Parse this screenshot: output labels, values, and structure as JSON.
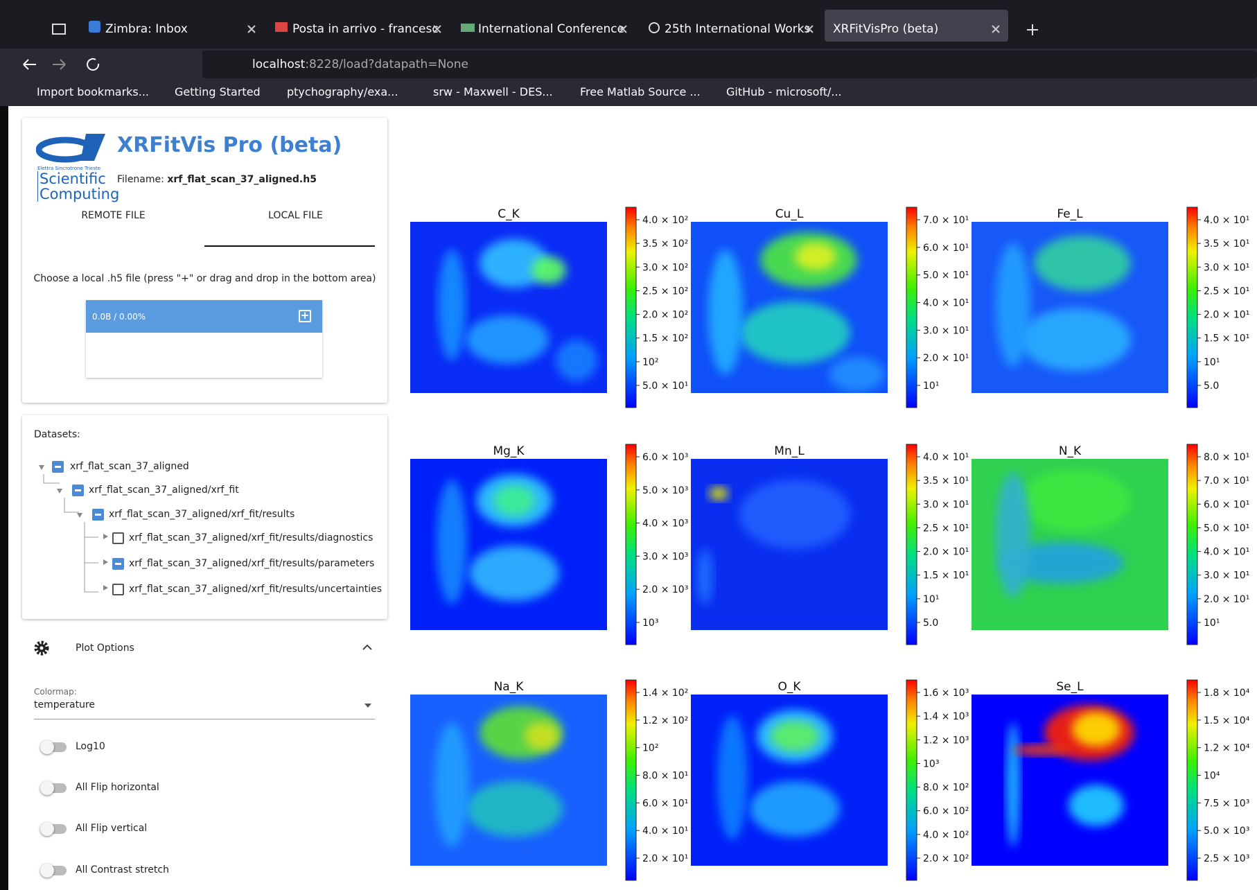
{
  "browser": {
    "tabs": [
      "Zimbra: Inbox",
      "Posta in arrivo - francesc",
      "International Conference",
      "25th International Works",
      "XRFitVisPro (beta)"
    ],
    "url_host": "localhost",
    "url_rest": ":8228/load?datapath=None",
    "bookmarks": [
      "Import bookmarks...",
      "Getting Started",
      "ptychography/exa...",
      "srw - Maxwell - DES...",
      "Free Matlab Source ...",
      "GitHub - microsoft/..."
    ]
  },
  "app": {
    "title": "XRFitVis Pro (beta)",
    "logo_small": "Elettra Sincrotrone Trieste",
    "logo_line1": "Scientific",
    "logo_line2": "Computing",
    "filename_label": "Filename:",
    "filename": "xrf_flat_scan_37_aligned.h5",
    "tabs": [
      "REMOTE FILE",
      "LOCAL FILE"
    ],
    "hint": "Choose a local .h5 file (press \"+\" or drag and drop in the bottom area)",
    "upload_status": "0.0B / 0.00%"
  },
  "datasets": {
    "label": "Datasets:",
    "items": [
      "xrf_flat_scan_37_aligned",
      "xrf_flat_scan_37_aligned/xrf_fit",
      "xrf_flat_scan_37_aligned/xrf_fit/results",
      "xrf_flat_scan_37_aligned/xrf_fit/results/diagnostics",
      "xrf_flat_scan_37_aligned/xrf_fit/results/parameters",
      "xrf_flat_scan_37_aligned/xrf_fit/results/uncertainties"
    ]
  },
  "plot_options": {
    "title": "Plot Options",
    "colormap_label": "Colormap:",
    "colormap": "temperature",
    "toggles": [
      "Log10",
      "All Flip horizontal",
      "All Flip vertical",
      "All Contrast stretch"
    ]
  },
  "plots": [
    {
      "title": "C_K",
      "ticks": [
        "4.0 × 10²",
        "3.5 × 10²",
        "3.0 × 10²",
        "2.5 × 10²",
        "2.0 × 10²",
        "1.5 × 10²",
        "10²",
        "5.0 × 10¹"
      ]
    },
    {
      "title": "Cu_L",
      "ticks": [
        "7.0 × 10¹",
        "6.0 × 10¹",
        "5.0 × 10¹",
        "4.0 × 10¹",
        "3.0 × 10¹",
        "2.0 × 10¹",
        "10¹"
      ]
    },
    {
      "title": "Fe_L",
      "ticks": [
        "4.0 × 10¹",
        "3.5 × 10¹",
        "3.0 × 10¹",
        "2.5 × 10¹",
        "2.0 × 10¹",
        "1.5 × 10¹",
        "10¹",
        "5.0"
      ]
    },
    {
      "title": "Mg_K",
      "ticks": [
        "6.0 × 10³",
        "5.0 × 10³",
        "4.0 × 10³",
        "3.0 × 10³",
        "2.0 × 10³",
        "10³"
      ]
    },
    {
      "title": "Mn_L",
      "ticks": [
        "4.0 × 10¹",
        "3.5 × 10¹",
        "3.0 × 10¹",
        "2.5 × 10¹",
        "2.0 × 10¹",
        "1.5 × 10¹",
        "10¹",
        "5.0"
      ]
    },
    {
      "title": "N_K",
      "ticks": [
        "8.0 × 10¹",
        "7.0 × 10¹",
        "6.0 × 10¹",
        "5.0 × 10¹",
        "4.0 × 10¹",
        "3.0 × 10¹",
        "2.0 × 10¹",
        "10¹"
      ]
    },
    {
      "title": "Na_K",
      "ticks": [
        "1.4 × 10²",
        "1.2 × 10²",
        "10²",
        "8.0 × 10¹",
        "6.0 × 10¹",
        "4.0 × 10¹",
        "2.0 × 10¹"
      ]
    },
    {
      "title": "O_K",
      "ticks": [
        "1.6 × 10³",
        "1.4 × 10³",
        "1.2 × 10³",
        "10³",
        "8.0 × 10²",
        "6.0 × 10²",
        "4.0 × 10²",
        "2.0 × 10²"
      ]
    },
    {
      "title": "Se_L",
      "ticks": [
        "1.8 × 10⁴",
        "1.5 × 10⁴",
        "1.2 × 10⁴",
        "10⁴",
        "7.5 × 10³",
        "5.0 × 10³",
        "2.5 × 10³"
      ]
    }
  ]
}
